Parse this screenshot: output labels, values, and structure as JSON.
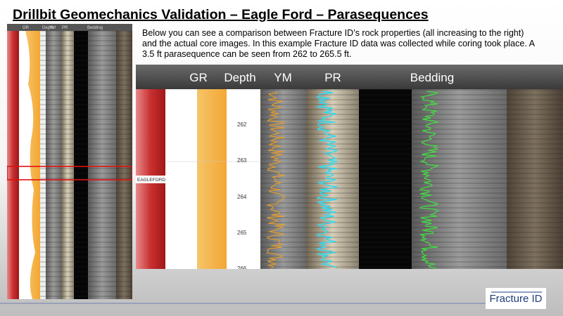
{
  "title": "Drillbit Geomechanics Validation – Eagle Ford – Parasequences",
  "description": "Below you can see a comparison between Fracture ID’s rock properties (all increasing to the right) and the actual core images.  In this example Fracture ID data was collected while coring took place.  A 3.5 ft parasequence can be seen from 262 to 265.5 ft.",
  "overview_log": {
    "headers": [
      "GR",
      "Depth",
      "YM",
      "PR",
      "Bedding"
    ]
  },
  "detail_log": {
    "headers": [
      "GR",
      "Depth",
      "YM",
      "PR",
      "Bedding"
    ],
    "formation": "EAGLEFORD",
    "depths": [
      "262",
      "263",
      "264",
      "265",
      "266"
    ]
  },
  "logo": "Fracture ID"
}
